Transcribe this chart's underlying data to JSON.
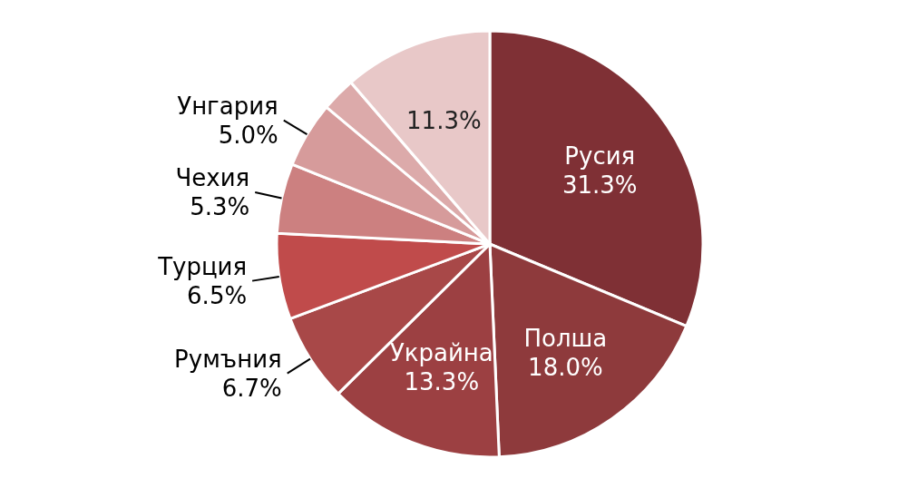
{
  "chart_data": {
    "type": "pie",
    "categories": [
      "Русия",
      "Полша",
      "Украйна",
      "Румъния",
      "Турция",
      "Чехия",
      "Унгария",
      null,
      null
    ],
    "values": [
      31.3,
      18.0,
      13.3,
      6.7,
      6.5,
      5.3,
      5.0,
      2.6,
      11.3
    ],
    "value_labels": [
      "31.3%",
      "18.0%",
      "13.3%",
      "6.7%",
      "6.5%",
      "5.3%",
      "5.0%",
      null,
      "11.3%"
    ],
    "colors": [
      "#7f3035",
      "#8e3a3c",
      "#9c4042",
      "#a84848",
      "#c04b4b",
      "#cc8080",
      "#d69b9b",
      "#dcaaaa",
      "#e8c8c8"
    ]
  }
}
